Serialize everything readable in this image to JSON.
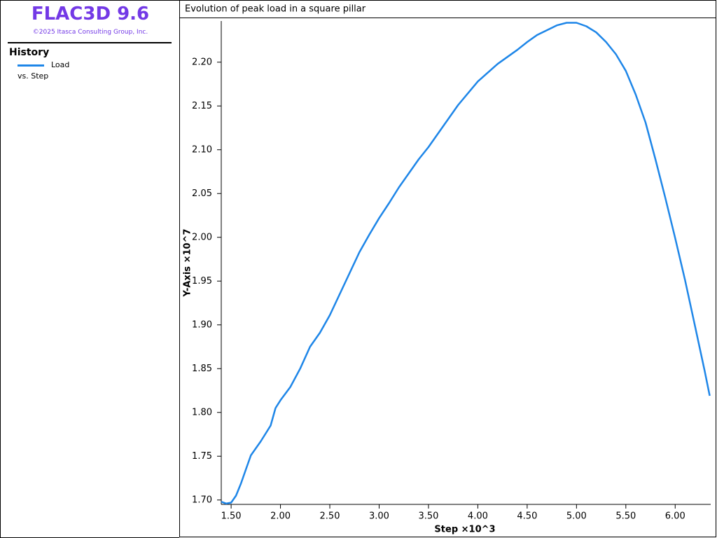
{
  "app": {
    "title": "FLAC3D 9.6",
    "copyright": "©2025 Itasca Consulting Group, Inc.",
    "section": "History",
    "plot_against": "vs. Step"
  },
  "chart_data": {
    "type": "line",
    "title": "Evolution of peak load in a square pillar",
    "x_label": "Step ×10^3",
    "y_label": "Y-Axis ×10^7",
    "x": [
      1.4,
      1.45,
      1.5,
      1.55,
      1.6,
      1.65,
      1.7,
      1.8,
      1.9,
      1.95,
      2.0,
      2.1,
      2.2,
      2.3,
      2.4,
      2.5,
      2.6,
      2.7,
      2.8,
      2.9,
      3.0,
      3.1,
      3.2,
      3.3,
      3.4,
      3.5,
      3.6,
      3.7,
      3.8,
      4.0,
      4.2,
      4.4,
      4.5,
      4.6,
      4.8,
      4.9,
      5.0,
      5.1,
      5.2,
      5.3,
      5.4,
      5.5,
      5.6,
      5.7,
      5.8,
      5.9,
      6.0,
      6.1,
      6.2,
      6.3,
      6.35
    ],
    "series": [
      {
        "name": "Load",
        "color": "#1e86e8",
        "values": [
          1.698,
          1.696,
          1.697,
          1.705,
          1.719,
          1.735,
          1.751,
          1.767,
          1.785,
          1.805,
          1.814,
          1.829,
          1.85,
          1.875,
          1.891,
          1.911,
          1.935,
          1.959,
          1.983,
          2.003,
          2.022,
          2.039,
          2.057,
          2.073,
          2.089,
          2.103,
          2.119,
          2.135,
          2.151,
          2.178,
          2.198,
          2.214,
          2.223,
          2.231,
          2.242,
          2.245,
          2.245,
          2.241,
          2.234,
          2.223,
          2.209,
          2.19,
          2.163,
          2.131,
          2.089,
          2.045,
          1.999,
          1.951,
          1.899,
          1.847,
          1.819
        ]
      }
    ],
    "xlim": [
      1.4,
      6.36
    ],
    "ylim": [
      1.695,
      2.247
    ],
    "xticks": [
      {
        "value": 1.5,
        "label": "1.50"
      },
      {
        "value": 2.0,
        "label": "2.00"
      },
      {
        "value": 2.5,
        "label": "2.50"
      },
      {
        "value": 3.0,
        "label": "3.00"
      },
      {
        "value": 3.5,
        "label": "3.50"
      },
      {
        "value": 4.0,
        "label": "4.00"
      },
      {
        "value": 4.5,
        "label": "4.50"
      },
      {
        "value": 5.0,
        "label": "5.00"
      },
      {
        "value": 5.5,
        "label": "5.50"
      },
      {
        "value": 6.0,
        "label": "6.00"
      }
    ],
    "yticks": [
      {
        "value": 1.7,
        "label": "1.70"
      },
      1.75,
      {
        "value": 1.8,
        "label": "1.80"
      },
      1.85,
      {
        "value": 1.9,
        "label": "1.90"
      },
      1.95,
      {
        "value": 2.0,
        "label": "2.00"
      },
      2.05,
      {
        "value": 2.1,
        "label": "2.10"
      },
      2.15,
      {
        "value": 2.2,
        "label": "2.20"
      }
    ],
    "grid": false
  }
}
